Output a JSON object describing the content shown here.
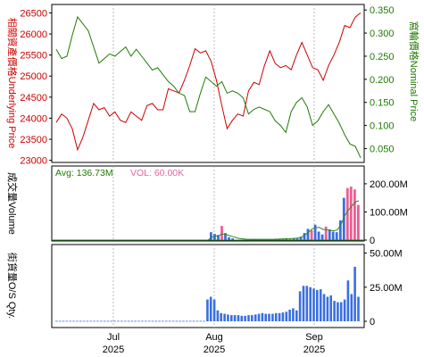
{
  "colors": {
    "underlying": "#cc0000",
    "warrant": "#1f7a00",
    "bar_blue": "#3a6fe0",
    "bar_pink": "#ee5d93",
    "volume_line": "#2a8a2a",
    "avg_text": "#1f7a00",
    "vol_text": "#e066a0",
    "frame": "#000000",
    "grid": "#aaaaaa"
  },
  "x_axis": {
    "labels": [
      {
        "month": "Jul",
        "year": "2025"
      },
      {
        "month": "Aug",
        "year": "2025"
      },
      {
        "month": "Sep",
        "year": "2025"
      }
    ]
  },
  "legend": {
    "avg": "Avg: 136.73M",
    "vol": "VOL: 60.00K"
  },
  "chart_data": [
    {
      "type": "line",
      "y_left_label": "相關資產價格Underlying Price",
      "y_right_label": "窩輪價格Nominal Price",
      "y_left_ticks": [
        "26500",
        "26000",
        "25500",
        "25000",
        "24500",
        "24000",
        "23500",
        "23000"
      ],
      "y_right_ticks": [
        "0.350",
        "0.300",
        "0.250",
        "0.200",
        "0.150",
        "0.100",
        "0.050"
      ],
      "y_left_range": [
        22950,
        26700
      ],
      "y_right_range": [
        0.02,
        0.362
      ],
      "series": [
        {
          "axis": "left",
          "values": [
            23900,
            24100,
            24000,
            23750,
            23250,
            23550,
            23950,
            24350,
            24200,
            24250,
            24050,
            24150,
            23950,
            23900,
            24150,
            24050,
            23950,
            24300,
            24350,
            24200,
            24200,
            24700,
            24650,
            24600,
            24900,
            25250,
            25650,
            25550,
            25600,
            25350,
            24900,
            24300,
            23750,
            23950,
            24100,
            24050,
            24650,
            24850,
            24800,
            25250,
            25600,
            25300,
            25200,
            25250,
            25150,
            25500,
            25800,
            25500,
            25200,
            25150,
            24900,
            25250,
            25500,
            25800,
            26200,
            26150,
            26400,
            26500
          ]
        },
        {
          "axis": "right",
          "values": [
            0.265,
            0.245,
            0.25,
            0.295,
            0.335,
            0.32,
            0.305,
            0.27,
            0.235,
            0.245,
            0.255,
            0.25,
            0.26,
            0.27,
            0.25,
            0.265,
            0.25,
            0.235,
            0.22,
            0.225,
            0.21,
            0.195,
            0.185,
            0.17,
            0.165,
            0.13,
            0.13,
            0.17,
            0.205,
            0.195,
            0.185,
            0.195,
            0.17,
            0.175,
            0.17,
            0.16,
            0.125,
            0.135,
            0.14,
            0.135,
            0.13,
            0.11,
            0.1,
            0.085,
            0.13,
            0.15,
            0.16,
            0.14,
            0.1,
            0.11,
            0.13,
            0.145,
            0.125,
            0.105,
            0.08,
            0.06,
            0.055,
            0.03
          ]
        }
      ]
    },
    {
      "type": "bar",
      "y_label": "成交量Volume",
      "y_ticks": [
        "200.00M",
        "100.00M",
        "0"
      ],
      "y_range": [
        0,
        260
      ],
      "y_unit": "M",
      "values": [
        0,
        0,
        0,
        0,
        0,
        0,
        0,
        0,
        0,
        0,
        0,
        0,
        0,
        0,
        0,
        0,
        0,
        0,
        0,
        0,
        0,
        0,
        0,
        0,
        0,
        0,
        0,
        0,
        0,
        0,
        0,
        0,
        0,
        0,
        0,
        0,
        0,
        0,
        0,
        0,
        0,
        0,
        0,
        28,
        22,
        18,
        50,
        25,
        10,
        6,
        0,
        0,
        2,
        1,
        3,
        4,
        2,
        1,
        3,
        1,
        2,
        5,
        4,
        5,
        6,
        3,
        6,
        8,
        12,
        25,
        40,
        35,
        55,
        30,
        20,
        48,
        38,
        30,
        28,
        70,
        150,
        185,
        190,
        180,
        125
      ],
      "highlight_values": [
        0,
        0,
        0,
        0,
        0,
        0,
        0,
        0,
        0,
        0,
        0,
        0,
        0,
        0,
        0,
        0,
        0,
        0,
        0,
        0,
        0,
        0,
        0,
        0,
        0,
        0,
        0,
        0,
        0,
        0,
        0,
        0,
        0,
        0,
        0,
        0,
        0,
        0,
        0,
        0,
        0,
        0,
        0,
        0,
        0,
        0,
        50,
        0,
        0,
        0,
        0,
        0,
        0,
        0,
        0,
        0,
        0,
        0,
        0,
        0,
        0,
        0,
        0,
        0,
        0,
        0,
        0,
        0,
        0,
        0,
        0,
        55,
        0,
        0,
        0,
        48,
        0,
        0,
        0,
        0,
        0,
        185,
        190,
        180,
        125
      ],
      "avg_line": [
        0,
        0,
        0,
        0,
        0,
        0,
        0,
        0,
        0,
        0,
        0,
        0,
        0,
        0,
        0,
        0,
        0,
        0,
        0,
        0,
        0,
        0,
        0,
        0,
        0,
        0,
        0,
        0,
        0,
        0,
        0,
        0,
        0,
        0,
        0,
        0,
        0,
        0,
        0,
        0,
        0,
        0,
        0,
        10,
        14,
        16,
        22,
        20,
        16,
        12,
        8,
        5,
        4,
        3,
        3,
        3,
        3,
        3,
        3,
        3,
        3,
        3,
        4,
        4,
        5,
        5,
        6,
        7,
        10,
        18,
        28,
        40,
        44,
        45,
        38,
        36,
        35,
        33,
        36,
        55,
        85,
        105,
        120,
        135,
        140
      ]
    },
    {
      "type": "bar",
      "y_label": "街貨量O/S Qty.",
      "y_ticks": [
        "50.00M",
        "25.00M",
        "0"
      ],
      "y_range": [
        0,
        55
      ],
      "y_unit": "M",
      "values": [
        0.3,
        0.3,
        0.3,
        0.3,
        0.3,
        0.3,
        0.3,
        0.3,
        0.3,
        0.3,
        0.3,
        0.3,
        0.3,
        0.3,
        0.3,
        0.3,
        0.3,
        0.3,
        0.3,
        0.3,
        0.3,
        0.3,
        0.3,
        0.3,
        0.3,
        0.3,
        0.3,
        0.3,
        0.3,
        0.3,
        0.3,
        0.3,
        0.3,
        0.3,
        0.3,
        0.3,
        0.3,
        0.3,
        0.3,
        0.3,
        0.3,
        0.3,
        0.3,
        0.3,
        16,
        18,
        16,
        8,
        6,
        5.5,
        5,
        4.5,
        4.5,
        4.5,
        4,
        4,
        4.5,
        4.5,
        5,
        5.5,
        6,
        5.5,
        5.5,
        5.5,
        6,
        6,
        6.5,
        7,
        8.5,
        9.5,
        8,
        22,
        26,
        26,
        25,
        24,
        23,
        23.5,
        20,
        18,
        19,
        15,
        14,
        14,
        16,
        30,
        20,
        40,
        18
      ]
    }
  ]
}
